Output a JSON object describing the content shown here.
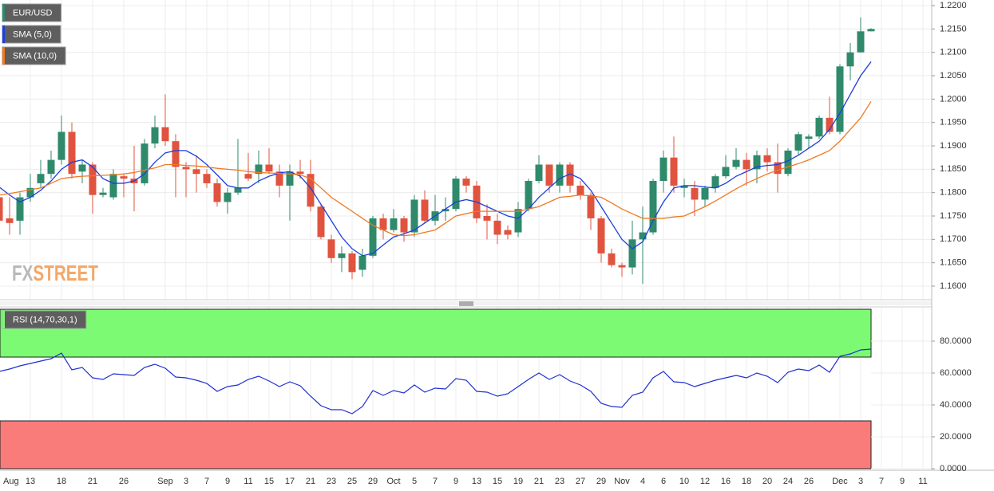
{
  "chart_data": [
    {
      "type": "candlestick",
      "watermark": [
        "FX",
        "STREET"
      ],
      "series": [
        {
          "name": "EUR/USD",
          "up_color": "#2f8a6c",
          "down_color": "#e0533f",
          "open": [
            1.179,
            1.1745,
            1.174,
            1.179,
            1.182,
            1.184,
            1.187,
            1.193,
            1.1845,
            1.186,
            1.1795,
            1.179,
            1.1835,
            1.183,
            1.182,
            1.1905,
            1.194,
            1.191,
            1.1855,
            1.185,
            1.184,
            1.182,
            1.178,
            1.18,
            1.184,
            1.184,
            1.186,
            1.1845,
            1.1815,
            1.1845,
            1.184,
            1.177,
            1.17,
            1.166,
            1.167,
            1.1635,
            1.1665,
            1.1745,
            1.172,
            1.1745,
            1.1715,
            1.1785,
            1.174,
            1.176,
            1.1765,
            1.183,
            1.1815,
            1.175,
            1.174,
            1.172,
            1.1715,
            1.1765,
            1.1825,
            1.186,
            1.1815,
            1.186,
            1.1815,
            1.1795,
            1.1745,
            1.167,
            1.1645,
            1.164,
            1.17,
            1.1715,
            1.1825,
            1.1875,
            1.181,
            1.181,
            1.1785,
            1.181,
            1.1835,
            1.1855,
            1.187,
            1.185,
            1.188,
            1.1865,
            1.184,
            1.189,
            1.1915,
            1.192,
            1.196,
            1.193,
            1.207,
            1.21,
            1.2145,
            null,
            null,
            null,
            null,
            null
          ],
          "high": [
            1.181,
            1.179,
            1.18,
            1.184,
            1.187,
            1.189,
            1.1965,
            1.195,
            1.187,
            1.1865,
            1.181,
            1.185,
            1.184,
            1.19,
            1.1915,
            1.1965,
            1.201,
            1.1925,
            1.1865,
            1.188,
            1.185,
            1.183,
            1.181,
            1.1915,
            1.1885,
            1.189,
            1.1895,
            1.186,
            1.186,
            1.187,
            1.187,
            1.1775,
            1.171,
            1.1685,
            1.1675,
            1.168,
            1.175,
            1.1755,
            1.1765,
            1.175,
            1.1795,
            1.1805,
            1.1795,
            1.179,
            1.1835,
            1.1835,
            1.1825,
            1.1775,
            1.1755,
            1.173,
            1.178,
            1.183,
            1.188,
            1.186,
            1.1865,
            1.1865,
            1.1825,
            1.18,
            1.175,
            1.168,
            1.165,
            1.174,
            1.177,
            1.183,
            1.189,
            1.192,
            1.183,
            1.1825,
            1.1815,
            1.184,
            1.188,
            1.1895,
            1.1885,
            1.189,
            1.1895,
            1.1905,
            1.1895,
            1.193,
            1.1925,
            1.1965,
            1.2005,
            1.2075,
            1.212,
            1.2175,
            1.2152,
            null,
            null,
            null,
            null,
            null
          ],
          "low": [
            1.173,
            1.171,
            1.171,
            1.178,
            1.181,
            1.183,
            1.186,
            1.183,
            1.182,
            1.1755,
            1.179,
            1.1785,
            1.179,
            1.176,
            1.1815,
            1.1895,
            1.19,
            1.179,
            1.179,
            1.18,
            1.181,
            1.177,
            1.1755,
            1.1795,
            1.1825,
            1.182,
            1.184,
            1.179,
            1.174,
            1.183,
            1.176,
            1.17,
            1.165,
            1.163,
            1.1615,
            1.162,
            1.166,
            1.17,
            1.1715,
            1.1695,
            1.1705,
            1.1735,
            1.173,
            1.174,
            1.176,
            1.18,
            1.1735,
            1.17,
            1.169,
            1.17,
            1.1705,
            1.176,
            1.182,
            1.18,
            1.18,
            1.18,
            1.1785,
            1.172,
            1.165,
            1.164,
            1.162,
            1.1625,
            1.1605,
            1.171,
            1.18,
            1.18,
            1.179,
            1.175,
            1.177,
            1.18,
            1.183,
            1.185,
            1.1815,
            1.182,
            1.1845,
            1.18,
            1.1835,
            1.188,
            1.1895,
            1.1915,
            1.1925,
            1.1925,
            1.204,
            1.21,
            1.2145,
            null,
            null,
            null,
            null,
            null
          ],
          "close": [
            1.174,
            1.1735,
            1.179,
            1.181,
            1.184,
            1.187,
            1.193,
            1.184,
            1.186,
            1.1795,
            1.18,
            1.184,
            1.183,
            1.182,
            1.1905,
            1.194,
            1.191,
            1.1855,
            1.185,
            1.184,
            1.182,
            1.178,
            1.18,
            1.181,
            1.183,
            1.186,
            1.1845,
            1.1815,
            1.1845,
            1.184,
            1.177,
            1.1705,
            1.166,
            1.167,
            1.163,
            1.1665,
            1.1745,
            1.172,
            1.1745,
            1.1715,
            1.1785,
            1.174,
            1.176,
            1.1765,
            1.183,
            1.1815,
            1.1745,
            1.174,
            1.171,
            1.171,
            1.1765,
            1.1825,
            1.186,
            1.1815,
            1.186,
            1.1815,
            1.1795,
            1.1745,
            1.167,
            1.1645,
            1.164,
            1.17,
            1.1715,
            1.1825,
            1.1875,
            1.1815,
            1.1815,
            1.1785,
            1.181,
            1.1835,
            1.1855,
            1.187,
            1.185,
            1.188,
            1.1865,
            1.184,
            1.189,
            1.1925,
            1.192,
            1.196,
            1.193,
            1.207,
            1.21,
            1.2145,
            1.215,
            null,
            null,
            null,
            null,
            null
          ]
        },
        {
          "name": "SMA (5,0)",
          "color": "#1c3fdc",
          "values": [
            1.1812,
            1.1795,
            1.178,
            1.179,
            1.1805,
            1.1825,
            1.185,
            1.1865,
            1.187,
            1.1855,
            1.183,
            1.182,
            1.182,
            1.1825,
            1.184,
            1.1865,
            1.1885,
            1.189,
            1.189,
            1.1878,
            1.186,
            1.1838,
            1.1815,
            1.181,
            1.181,
            1.1825,
            1.1835,
            1.1842,
            1.1845,
            1.1835,
            1.181,
            1.1775,
            1.174,
            1.1705,
            1.168,
            1.1665,
            1.167,
            1.1688,
            1.1705,
            1.1712,
            1.172,
            1.1735,
            1.175,
            1.1765,
            1.178,
            1.1785,
            1.178,
            1.177,
            1.176,
            1.175,
            1.1745,
            1.1765,
            1.179,
            1.181,
            1.183,
            1.184,
            1.183,
            1.1805,
            1.177,
            1.1735,
            1.17,
            1.168,
            1.1695,
            1.174,
            1.178,
            1.181,
            1.1815,
            1.1815,
            1.1812,
            1.181,
            1.182,
            1.1835,
            1.1845,
            1.1855,
            1.1858,
            1.186,
            1.1868,
            1.188,
            1.1895,
            1.191,
            1.1935,
            1.197,
            1.201,
            1.205,
            1.208,
            null,
            null,
            null,
            null,
            null
          ]
        },
        {
          "name": "SMA (10,0)",
          "color": "#ee7a22",
          "values": [
            1.1795,
            1.1798,
            1.1802,
            1.1806,
            1.181,
            1.182,
            1.183,
            1.1833,
            1.1835,
            1.1836,
            1.1837,
            1.1838,
            1.184,
            1.1843,
            1.1848,
            1.1853,
            1.186,
            1.186,
            1.1858,
            1.1857,
            1.1855,
            1.1852,
            1.185,
            1.1848,
            1.1845,
            1.1843,
            1.1842,
            1.1841,
            1.184,
            1.1838,
            1.183,
            1.181,
            1.179,
            1.1775,
            1.176,
            1.1745,
            1.173,
            1.172,
            1.171,
            1.1708,
            1.171,
            1.1715,
            1.172,
            1.1735,
            1.175,
            1.1755,
            1.176,
            1.176,
            1.176,
            1.176,
            1.176,
            1.1765,
            1.177,
            1.178,
            1.179,
            1.1792,
            1.1795,
            1.1793,
            1.179,
            1.1778,
            1.1765,
            1.1755,
            1.1745,
            1.1745,
            1.1745,
            1.1748,
            1.175,
            1.176,
            1.177,
            1.1782,
            1.1795,
            1.1808,
            1.182,
            1.183,
            1.184,
            1.1848,
            1.1855,
            1.1862,
            1.187,
            1.188,
            1.189,
            1.191,
            1.1935,
            1.196,
            1.1995,
            null,
            null,
            null,
            null,
            null
          ]
        }
      ],
      "ylim": [
        1.1571,
        1.2212
      ],
      "yticks": [
        {
          "value": 1.16,
          "label": "1.1600"
        },
        {
          "value": 1.165,
          "label": "1.1650"
        },
        {
          "value": 1.17,
          "label": "1.1700"
        },
        {
          "value": 1.175,
          "label": "1.1750"
        },
        {
          "value": 1.18,
          "label": "1.1800"
        },
        {
          "value": 1.185,
          "label": "1.1850"
        },
        {
          "value": 1.19,
          "label": "1.1900"
        },
        {
          "value": 1.195,
          "label": "1.1950"
        },
        {
          "value": 1.2,
          "label": "1.2000"
        },
        {
          "value": 1.205,
          "label": "1.2050"
        },
        {
          "value": 1.21,
          "label": "1.2100"
        },
        {
          "value": 1.215,
          "label": "1.2150"
        },
        {
          "value": 1.22,
          "label": "1.2200"
        }
      ],
      "grid": true
    },
    {
      "type": "line",
      "categories": [
        "Aug",
        null,
        null,
        "13",
        null,
        null,
        "18",
        null,
        null,
        "21",
        null,
        null,
        "26",
        null,
        null,
        null,
        "Sep",
        null,
        "3",
        null,
        "7",
        null,
        "9",
        null,
        "11",
        null,
        "15",
        null,
        "17",
        null,
        "21",
        null,
        "23",
        null,
        "25",
        null,
        "29",
        null,
        "Oct",
        null,
        "5",
        null,
        "7",
        null,
        "9",
        null,
        "13",
        null,
        "15",
        null,
        "19",
        null,
        "21",
        null,
        "23",
        null,
        "27",
        null,
        "29",
        null,
        "Nov",
        null,
        "4",
        null,
        "6",
        null,
        "10",
        null,
        "12",
        null,
        "16",
        null,
        "18",
        null,
        "20",
        null,
        "24",
        null,
        "26",
        null,
        null,
        "Dec",
        null,
        "3",
        null,
        "7",
        null,
        "9",
        null,
        "11"
      ],
      "series": [
        {
          "name": "RSI (14,70,30,1)",
          "color": "#1f2fd0",
          "values": [
            61,
            62.5,
            64.5,
            66,
            67.5,
            69,
            72.5,
            62,
            63.5,
            57,
            56,
            59.5,
            59,
            58.5,
            63.5,
            65.5,
            63,
            57.5,
            57,
            55.5,
            53.5,
            48.5,
            51.5,
            52.5,
            56,
            58,
            55,
            51.5,
            54.5,
            52,
            45.5,
            39.5,
            37,
            37,
            34.5,
            39,
            49,
            46,
            49,
            47.5,
            52.5,
            48,
            50.5,
            50,
            56.5,
            55.5,
            48.5,
            48,
            45.5,
            47,
            51.5,
            56,
            60,
            56,
            59,
            55,
            52.5,
            48.5,
            41,
            39,
            38.5,
            46,
            48,
            57,
            61,
            54.5,
            54,
            51.5,
            53.5,
            55.5,
            57,
            58.5,
            57,
            60,
            58,
            54,
            60.5,
            62.5,
            61.5,
            65,
            60.5,
            70.5,
            72,
            74.5,
            75,
            null,
            null,
            null,
            null,
            null
          ]
        }
      ],
      "bands": [
        {
          "from": 70,
          "to": 100,
          "color": "#7cfa74"
        },
        {
          "from": 0,
          "to": 30,
          "color": "#f97c7b"
        }
      ],
      "ylim": [
        0,
        101.5
      ],
      "yticks": [
        {
          "value": 0,
          "label": "0.0000"
        },
        {
          "value": 20,
          "label": "20.0000"
        },
        {
          "value": 40,
          "label": "40.0000"
        },
        {
          "value": 60,
          "label": "60.0000"
        },
        {
          "value": 80,
          "label": "80.0000"
        }
      ],
      "grid": true
    }
  ]
}
